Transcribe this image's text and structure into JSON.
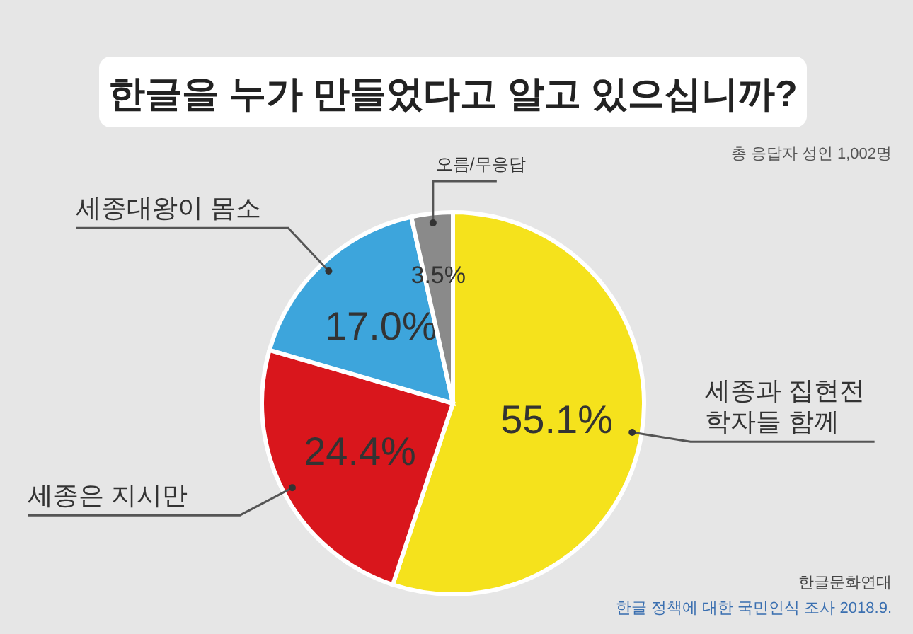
{
  "chart_data": {
    "type": "pie",
    "title": "한글을 누가 만들었다고 알고 있으십니까?",
    "subtitle": "총 응답자 성인 1,002명",
    "categories": [
      "세종과 집현전 학자들 함께",
      "세종은 지시만",
      "세종대왕이 몸소",
      "오름/무응답"
    ],
    "values": [
      55.1,
      24.4,
      17.0,
      3.5
    ],
    "colors": [
      "#f5e21c",
      "#d9161c",
      "#3da5dc",
      "#8a8a8a"
    ],
    "value_labels": [
      "55.1%",
      "24.4%",
      "17.0%",
      "3.5%"
    ],
    "annotations": [
      "한글문화연대",
      "한글 정책에 대한 국민인식 조사 2018.9."
    ]
  }
}
